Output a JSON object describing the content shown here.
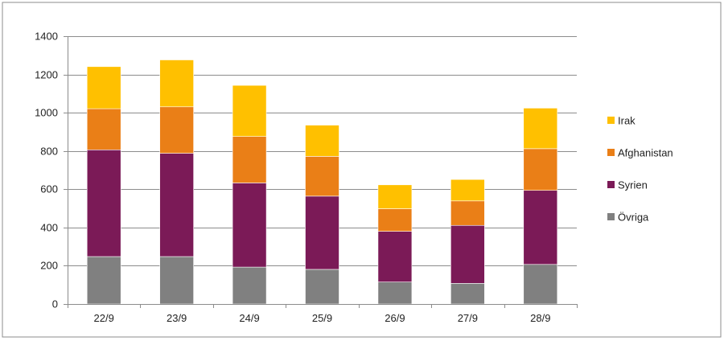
{
  "chart_data": {
    "type": "bar",
    "stacked": true,
    "categories": [
      "22/9",
      "23/9",
      "24/9",
      "25/9",
      "26/9",
      "27/9",
      "28/9"
    ],
    "series": [
      {
        "name": "Övriga",
        "color": "#808080",
        "values": [
          248,
          248,
          193,
          181,
          115,
          108,
          207
        ]
      },
      {
        "name": "Syrien",
        "color": "#7B1A57",
        "values": [
          558,
          540,
          440,
          383,
          265,
          303,
          387
        ]
      },
      {
        "name": "Afghanistan",
        "color": "#EA7F17",
        "values": [
          215,
          243,
          243,
          208,
          118,
          128,
          218
        ]
      },
      {
        "name": "Irak",
        "color": "#FFC000",
        "values": [
          220,
          245,
          267,
          163,
          125,
          112,
          212
        ]
      }
    ],
    "ylim": [
      0,
      1400
    ],
    "yticks": [
      0,
      200,
      400,
      600,
      800,
      1000,
      1200,
      1400
    ],
    "grid": true,
    "legend": {
      "placement": "right",
      "order": [
        "Irak",
        "Afghanistan",
        "Syrien",
        "Övriga"
      ]
    },
    "title": "",
    "xlabel": "",
    "ylabel": ""
  }
}
